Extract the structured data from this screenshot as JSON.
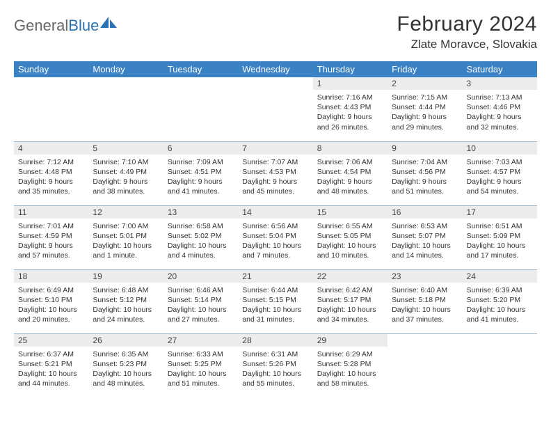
{
  "brand": {
    "part1": "General",
    "part2": "Blue"
  },
  "title": "February 2024",
  "location": "Zlate Moravce, Slovakia",
  "colors": {
    "header_bg": "#3b82c4",
    "header_text": "#ffffff",
    "daynum_bg": "#ececec",
    "border": "#9fb6c9",
    "logo_gray": "#676767",
    "logo_blue": "#2a72b5",
    "text": "#333333",
    "background": "#ffffff"
  },
  "fonts": {
    "title_size_pt": 22,
    "location_size_pt": 13,
    "header_size_pt": 10,
    "daynum_size_pt": 9,
    "body_size_pt": 8
  },
  "day_headers": [
    "Sunday",
    "Monday",
    "Tuesday",
    "Wednesday",
    "Thursday",
    "Friday",
    "Saturday"
  ],
  "weeks": [
    [
      {
        "n": "",
        "sr": "",
        "ss": "",
        "dl": ""
      },
      {
        "n": "",
        "sr": "",
        "ss": "",
        "dl": ""
      },
      {
        "n": "",
        "sr": "",
        "ss": "",
        "dl": ""
      },
      {
        "n": "",
        "sr": "",
        "ss": "",
        "dl": ""
      },
      {
        "n": "1",
        "sr": "Sunrise: 7:16 AM",
        "ss": "Sunset: 4:43 PM",
        "dl": "Daylight: 9 hours and 26 minutes."
      },
      {
        "n": "2",
        "sr": "Sunrise: 7:15 AM",
        "ss": "Sunset: 4:44 PM",
        "dl": "Daylight: 9 hours and 29 minutes."
      },
      {
        "n": "3",
        "sr": "Sunrise: 7:13 AM",
        "ss": "Sunset: 4:46 PM",
        "dl": "Daylight: 9 hours and 32 minutes."
      }
    ],
    [
      {
        "n": "4",
        "sr": "Sunrise: 7:12 AM",
        "ss": "Sunset: 4:48 PM",
        "dl": "Daylight: 9 hours and 35 minutes."
      },
      {
        "n": "5",
        "sr": "Sunrise: 7:10 AM",
        "ss": "Sunset: 4:49 PM",
        "dl": "Daylight: 9 hours and 38 minutes."
      },
      {
        "n": "6",
        "sr": "Sunrise: 7:09 AM",
        "ss": "Sunset: 4:51 PM",
        "dl": "Daylight: 9 hours and 41 minutes."
      },
      {
        "n": "7",
        "sr": "Sunrise: 7:07 AM",
        "ss": "Sunset: 4:53 PM",
        "dl": "Daylight: 9 hours and 45 minutes."
      },
      {
        "n": "8",
        "sr": "Sunrise: 7:06 AM",
        "ss": "Sunset: 4:54 PM",
        "dl": "Daylight: 9 hours and 48 minutes."
      },
      {
        "n": "9",
        "sr": "Sunrise: 7:04 AM",
        "ss": "Sunset: 4:56 PM",
        "dl": "Daylight: 9 hours and 51 minutes."
      },
      {
        "n": "10",
        "sr": "Sunrise: 7:03 AM",
        "ss": "Sunset: 4:57 PM",
        "dl": "Daylight: 9 hours and 54 minutes."
      }
    ],
    [
      {
        "n": "11",
        "sr": "Sunrise: 7:01 AM",
        "ss": "Sunset: 4:59 PM",
        "dl": "Daylight: 9 hours and 57 minutes."
      },
      {
        "n": "12",
        "sr": "Sunrise: 7:00 AM",
        "ss": "Sunset: 5:01 PM",
        "dl": "Daylight: 10 hours and 1 minute."
      },
      {
        "n": "13",
        "sr": "Sunrise: 6:58 AM",
        "ss": "Sunset: 5:02 PM",
        "dl": "Daylight: 10 hours and 4 minutes."
      },
      {
        "n": "14",
        "sr": "Sunrise: 6:56 AM",
        "ss": "Sunset: 5:04 PM",
        "dl": "Daylight: 10 hours and 7 minutes."
      },
      {
        "n": "15",
        "sr": "Sunrise: 6:55 AM",
        "ss": "Sunset: 5:05 PM",
        "dl": "Daylight: 10 hours and 10 minutes."
      },
      {
        "n": "16",
        "sr": "Sunrise: 6:53 AM",
        "ss": "Sunset: 5:07 PM",
        "dl": "Daylight: 10 hours and 14 minutes."
      },
      {
        "n": "17",
        "sr": "Sunrise: 6:51 AM",
        "ss": "Sunset: 5:09 PM",
        "dl": "Daylight: 10 hours and 17 minutes."
      }
    ],
    [
      {
        "n": "18",
        "sr": "Sunrise: 6:49 AM",
        "ss": "Sunset: 5:10 PM",
        "dl": "Daylight: 10 hours and 20 minutes."
      },
      {
        "n": "19",
        "sr": "Sunrise: 6:48 AM",
        "ss": "Sunset: 5:12 PM",
        "dl": "Daylight: 10 hours and 24 minutes."
      },
      {
        "n": "20",
        "sr": "Sunrise: 6:46 AM",
        "ss": "Sunset: 5:14 PM",
        "dl": "Daylight: 10 hours and 27 minutes."
      },
      {
        "n": "21",
        "sr": "Sunrise: 6:44 AM",
        "ss": "Sunset: 5:15 PM",
        "dl": "Daylight: 10 hours and 31 minutes."
      },
      {
        "n": "22",
        "sr": "Sunrise: 6:42 AM",
        "ss": "Sunset: 5:17 PM",
        "dl": "Daylight: 10 hours and 34 minutes."
      },
      {
        "n": "23",
        "sr": "Sunrise: 6:40 AM",
        "ss": "Sunset: 5:18 PM",
        "dl": "Daylight: 10 hours and 37 minutes."
      },
      {
        "n": "24",
        "sr": "Sunrise: 6:39 AM",
        "ss": "Sunset: 5:20 PM",
        "dl": "Daylight: 10 hours and 41 minutes."
      }
    ],
    [
      {
        "n": "25",
        "sr": "Sunrise: 6:37 AM",
        "ss": "Sunset: 5:21 PM",
        "dl": "Daylight: 10 hours and 44 minutes."
      },
      {
        "n": "26",
        "sr": "Sunrise: 6:35 AM",
        "ss": "Sunset: 5:23 PM",
        "dl": "Daylight: 10 hours and 48 minutes."
      },
      {
        "n": "27",
        "sr": "Sunrise: 6:33 AM",
        "ss": "Sunset: 5:25 PM",
        "dl": "Daylight: 10 hours and 51 minutes."
      },
      {
        "n": "28",
        "sr": "Sunrise: 6:31 AM",
        "ss": "Sunset: 5:26 PM",
        "dl": "Daylight: 10 hours and 55 minutes."
      },
      {
        "n": "29",
        "sr": "Sunrise: 6:29 AM",
        "ss": "Sunset: 5:28 PM",
        "dl": "Daylight: 10 hours and 58 minutes."
      },
      {
        "n": "",
        "sr": "",
        "ss": "",
        "dl": ""
      },
      {
        "n": "",
        "sr": "",
        "ss": "",
        "dl": ""
      }
    ]
  ]
}
